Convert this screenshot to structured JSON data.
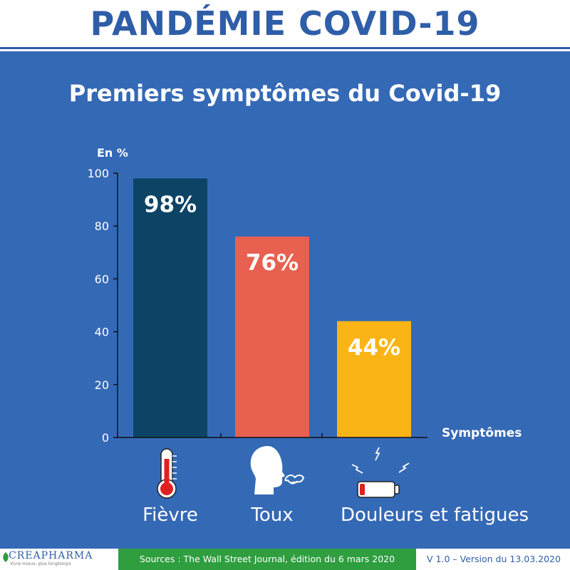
{
  "header": {
    "title": "PANDÉMIE COVID-19"
  },
  "chart_data": {
    "type": "bar",
    "title": "Premiers symptômes du Covid-19",
    "ylabel": "En %",
    "xlabel": "Symptômes",
    "ylim": [
      0,
      100
    ],
    "yticks": [
      0,
      20,
      40,
      60,
      80,
      100
    ],
    "categories": [
      "Fièvre",
      "Toux",
      "Douleurs et fatigues"
    ],
    "values": [
      98,
      76,
      44
    ],
    "data_labels": [
      "98%",
      "76%",
      "44%"
    ],
    "colors": [
      "#0d4466",
      "#e8604f",
      "#fbb416"
    ],
    "icons": [
      "thermometer-icon",
      "coughing-head-icon",
      "low-battery-icon"
    ],
    "grid": false
  },
  "footer": {
    "logo_name": "CREAPHARMA",
    "logo_tagline": "Vivre mieux, plus longtemps",
    "sources": "Sources : The Wall Street Journal, édition du 6 mars 2020",
    "version": "V 1.0 – Version du 13.03.2020"
  },
  "colors": {
    "panel": "#3469b6",
    "brand_blue": "#2f5ea8",
    "footer_green": "#2e9e3e"
  }
}
